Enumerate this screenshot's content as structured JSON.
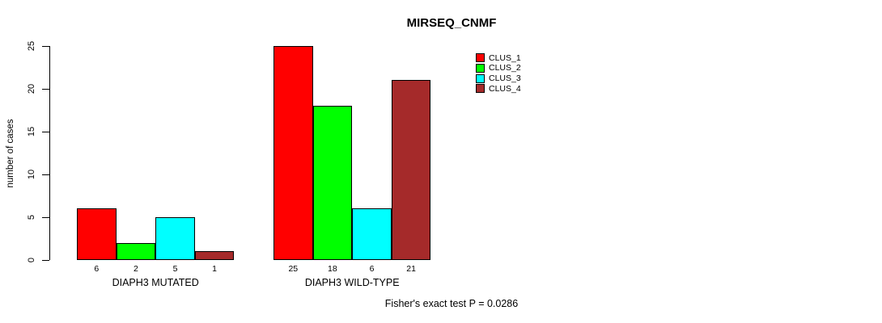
{
  "title": "MIRSEQ_CNMF",
  "footer_note": "Fisher's exact test P = 0.0286",
  "chart_data": {
    "type": "bar",
    "title": "MIRSEQ_CNMF",
    "xlabel": "",
    "ylabel": "number of cases",
    "ylim": [
      0,
      25
    ],
    "yticks": [
      "0",
      "5",
      "10",
      "15",
      "20",
      "25"
    ],
    "ytick_values": [
      0,
      5,
      10,
      15,
      20,
      25
    ],
    "grid": false,
    "categories": [
      "DIAPH3 MUTATED",
      "DIAPH3 WILD-TYPE"
    ],
    "groups": [
      {
        "label": "DIAPH3 MUTATED",
        "values": [
          6,
          2,
          5,
          1
        ],
        "value_labels": [
          "6",
          "2",
          "5",
          "1"
        ]
      },
      {
        "label": "DIAPH3 WILD-TYPE",
        "values": [
          25,
          18,
          6,
          21
        ],
        "value_labels": [
          "25",
          "18",
          "6",
          "21"
        ]
      }
    ],
    "series": [
      {
        "name": "CLUS_1",
        "color": "#ff0000",
        "values": [
          6,
          25
        ]
      },
      {
        "name": "CLUS_2",
        "color": "#00ff00",
        "values": [
          2,
          18
        ]
      },
      {
        "name": "CLUS_3",
        "color": "#00ffff",
        "values": [
          5,
          6
        ]
      },
      {
        "name": "CLUS_4",
        "color": "#a52a2a",
        "values": [
          1,
          21
        ]
      }
    ],
    "legend": [
      "CLUS_1",
      "CLUS_2",
      "CLUS_3",
      "CLUS_4"
    ],
    "legend_position": "top-right-inner",
    "bar_border_color": "#000000",
    "annotation": "Fisher's exact test P = 0.0286"
  },
  "colors": {
    "background": "#ffffff",
    "axis": "#000000",
    "text": "#000000",
    "clus_1": "#ff0000",
    "clus_2": "#00ff00",
    "clus_3": "#00ffff",
    "clus_4": "#a52a2a"
  }
}
